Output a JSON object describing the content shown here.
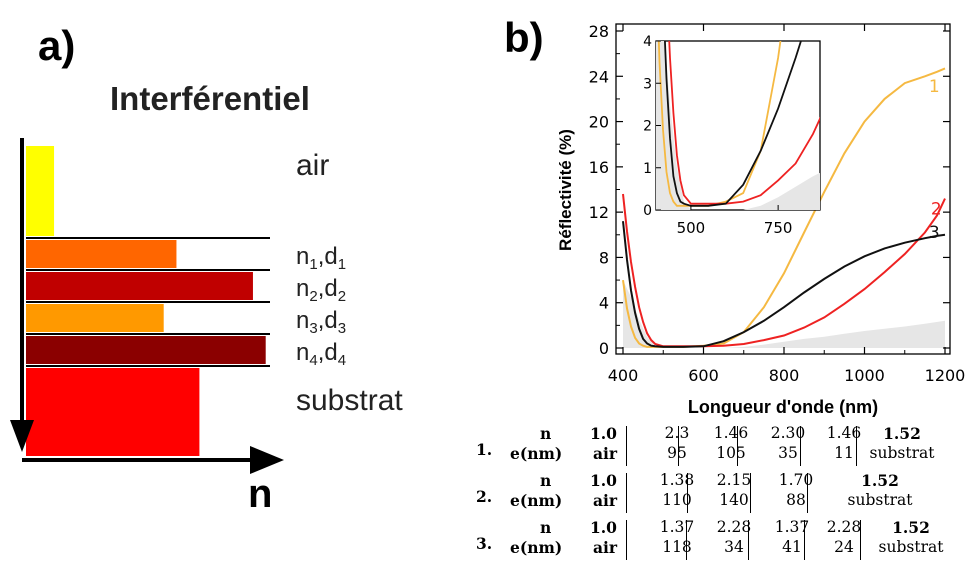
{
  "panel_a": {
    "label": "a)",
    "title": "Interférentiel",
    "axis_label": "n",
    "layers": [
      {
        "name": "air",
        "label": "air",
        "color": "#ffff00",
        "index_fraction": 0.11
      },
      {
        "name": "layer1",
        "label": "n",
        "sub": "1",
        "label2": ",d",
        "sub2": "1",
        "color": "#ff6600",
        "index_fraction": 0.59
      },
      {
        "name": "layer2",
        "label": "n",
        "sub": "2",
        "label2": ",d",
        "sub2": "2",
        "color": "#c00000",
        "index_fraction": 0.89
      },
      {
        "name": "layer3",
        "label": "n",
        "sub": "3",
        "label2": ",d",
        "sub2": "3",
        "color": "#ff9900",
        "index_fraction": 0.54
      },
      {
        "name": "layer4",
        "label": "n",
        "sub": "4",
        "label2": ",d",
        "sub2": "4",
        "color": "#8b0000",
        "index_fraction": 0.94
      },
      {
        "name": "substrate",
        "label": "substrat",
        "color": "#ff0000",
        "index_fraction": 0.68
      }
    ]
  },
  "panel_b": {
    "label": "b)"
  },
  "chart_data": {
    "type": "line",
    "xlabel": "Longueur d'onde (nm)",
    "ylabel": "Réflectivité (%)",
    "xlim": [
      400,
      1200
    ],
    "ylim": [
      0,
      28
    ],
    "xticks": [
      400,
      600,
      800,
      1000,
      1200
    ],
    "yticks": [
      0,
      4,
      8,
      12,
      16,
      20,
      24,
      28
    ],
    "series": [
      {
        "name": "1",
        "color": "#f5b942",
        "x": [
          400,
          410,
          420,
          430,
          440,
          450,
          460,
          480,
          500,
          550,
          600,
          650,
          700,
          750,
          800,
          850,
          900,
          950,
          1000,
          1050,
          1100,
          1150,
          1180,
          1200
        ],
        "y": [
          6.0,
          3.5,
          1.9,
          0.9,
          0.4,
          0.2,
          0.1,
          0.1,
          0.1,
          0.1,
          0.2,
          0.4,
          1.4,
          3.6,
          6.6,
          10.2,
          13.8,
          17.2,
          20.0,
          22.0,
          23.4,
          24.0,
          24.4,
          24.7
        ]
      },
      {
        "name": "2",
        "color": "#ee2222",
        "x": [
          400,
          410,
          420,
          430,
          440,
          450,
          460,
          470,
          480,
          500,
          550,
          600,
          650,
          700,
          750,
          800,
          850,
          900,
          950,
          1000,
          1050,
          1100,
          1150,
          1180,
          1200
        ],
        "y": [
          13.6,
          10.3,
          7.6,
          5.4,
          3.6,
          2.3,
          1.3,
          0.7,
          0.35,
          0.15,
          0.15,
          0.15,
          0.2,
          0.35,
          0.7,
          1.1,
          1.8,
          2.7,
          3.9,
          5.2,
          6.7,
          8.3,
          10.2,
          11.7,
          13.2
        ]
      },
      {
        "name": "3",
        "color": "#111111",
        "x": [
          400,
          410,
          420,
          430,
          440,
          450,
          460,
          470,
          480,
          500,
          550,
          600,
          650,
          700,
          750,
          800,
          850,
          900,
          950,
          1000,
          1050,
          1100,
          1150,
          1180,
          1200
        ],
        "y": [
          11.2,
          7.8,
          5.1,
          3.1,
          1.7,
          0.8,
          0.4,
          0.2,
          0.15,
          0.1,
          0.1,
          0.15,
          0.6,
          1.4,
          2.4,
          3.6,
          4.9,
          6.1,
          7.2,
          8.1,
          8.8,
          9.3,
          9.7,
          9.9,
          10.0
        ]
      }
    ],
    "shaded": {
      "color": "#e6e6e6",
      "x": [
        400,
        420,
        440,
        460,
        480,
        500,
        520,
        600,
        650,
        700,
        750,
        800,
        850,
        900,
        950,
        1000,
        1050,
        1100,
        1150,
        1200
      ],
      "y": [
        6.0,
        4.5,
        2.5,
        1.0,
        0.2,
        0.0,
        0.0,
        0.0,
        0.0,
        0.1,
        0.3,
        0.55,
        0.8,
        1.0,
        1.25,
        1.5,
        1.7,
        1.9,
        2.15,
        2.4
      ]
    },
    "inset": {
      "xlim": [
        400,
        870
      ],
      "ylim": [
        0,
        4
      ],
      "xticks": [
        500,
        750
      ],
      "yticks": [
        0,
        1,
        2,
        3,
        4
      ]
    },
    "curve_labels": [
      {
        "text": "1",
        "x": 1160,
        "y": 22.6,
        "color": "#f5b942"
      },
      {
        "text": "2",
        "x": 1165,
        "y": 11.8,
        "color": "#ee2222"
      },
      {
        "text": "3",
        "x": 1160,
        "y": 9.7,
        "color": "#111111"
      }
    ]
  },
  "table": {
    "rows": [
      {
        "num": "1.",
        "label_n": "n",
        "label_e": "e(nm)",
        "air_n": "1.0",
        "air_e": "air",
        "layers": [
          [
            "2.3",
            "95"
          ],
          [
            "1.46",
            "105"
          ],
          [
            "2.30",
            "35"
          ],
          [
            "1.46",
            "11"
          ]
        ],
        "sub_n": "1.52",
        "sub_e": "substrat"
      },
      {
        "num": "2.",
        "label_n": "n",
        "label_e": "e(nm)",
        "air_n": "1.0",
        "air_e": "air",
        "layers": [
          [
            "1.38",
            "110"
          ],
          [
            "2.15",
            "140"
          ],
          [
            "1.70",
            "88"
          ]
        ],
        "sub_n": "1.52",
        "sub_e": "substrat"
      },
      {
        "num": "3.",
        "label_n": "n",
        "label_e": "e(nm)",
        "air_n": "1.0",
        "air_e": "air",
        "layers": [
          [
            "1.37",
            "118"
          ],
          [
            "2.28",
            "34"
          ],
          [
            "1.37",
            "41"
          ],
          [
            "2.28",
            "24"
          ]
        ],
        "sub_n": "1.52",
        "sub_e": "substrat"
      }
    ]
  }
}
